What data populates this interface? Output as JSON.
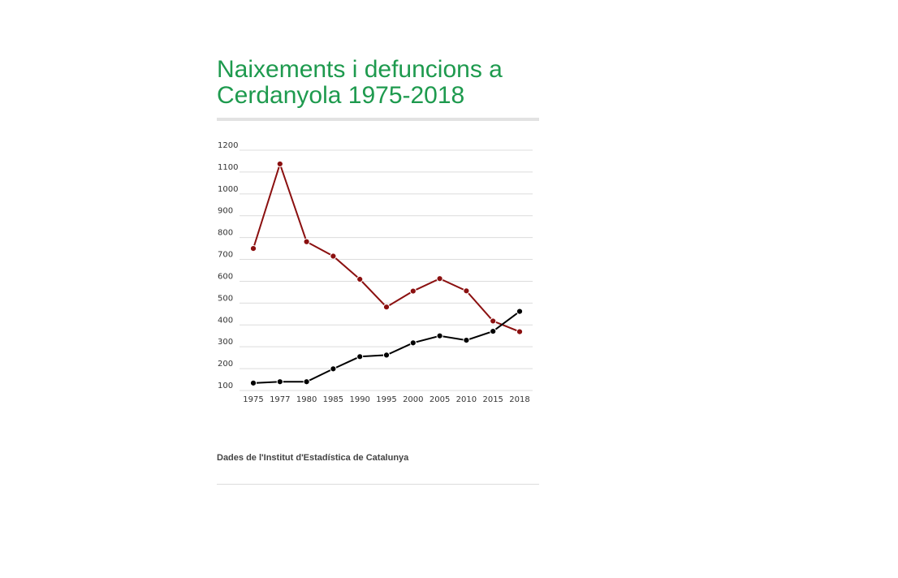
{
  "title_line1": "Naixements i defuncions a",
  "title_line2": "Cerdanyola 1975-2018",
  "source": "Dades de l'Institut d'Estadística de Catalunya",
  "chart_data": {
    "type": "line",
    "title": "Naixements i defuncions a Cerdanyola 1975-2018",
    "xlabel": "",
    "ylabel": "",
    "categories": [
      "1975",
      "1977",
      "1980",
      "1985",
      "1990",
      "1995",
      "2000",
      "2005",
      "2010",
      "2015",
      "2018"
    ],
    "ylim": [
      100,
      1200
    ],
    "yticks": [
      100,
      200,
      300,
      400,
      500,
      600,
      700,
      800,
      900,
      1000,
      1100,
      1200
    ],
    "grid": true,
    "legend_position": "bottom",
    "series": [
      {
        "name": "Naixements",
        "color": "#8b1010",
        "values": [
          750,
          1137,
          781,
          715,
          609,
          482,
          555,
          612,
          556,
          418,
          369
        ]
      },
      {
        "name": "Defuncions",
        "color": "#000000",
        "values": [
          134,
          140,
          140,
          199,
          255,
          262,
          318,
          350,
          330,
          371,
          462
        ]
      }
    ]
  }
}
